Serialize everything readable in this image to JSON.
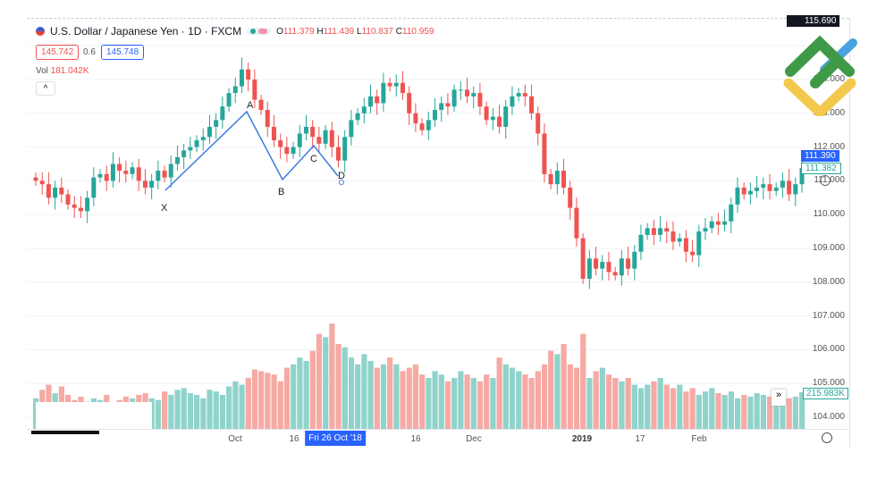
{
  "header": {
    "title": "U.S. Dollar / Japanese Yen · 1D · FXCM",
    "open": "111.379",
    "high": "111.439",
    "low": "110.837",
    "close": "110.959",
    "o": "O",
    "h": "H",
    "l": "L",
    "c": "C"
  },
  "bid": "145.742",
  "spread": "0.6",
  "ask": "145.748",
  "volume": {
    "label": "Vol",
    "value": "181.042K",
    "last": "215.983K"
  },
  "price_axis": [
    "115.690",
    "114.000",
    "113.000",
    "112.000",
    "111.000",
    "110.000",
    "109.000",
    "108.000",
    "107.000",
    "106.000",
    "105.000",
    "104.000"
  ],
  "price_badges": {
    "last": "111.390",
    "prev": "111.382"
  },
  "time_axis": [
    "Oct",
    "16",
    "Fri 26 Oct '18",
    "16",
    "Dec",
    "2019",
    "17",
    "Feb"
  ],
  "pattern_labels": [
    "X",
    "A",
    "B",
    "C",
    "D"
  ],
  "colors": {
    "up": "#26a69a",
    "down": "#ef5350",
    "vol_up": "#8fd3cb",
    "vol_down": "#f7a9a4",
    "pattern": "#3b7be0",
    "highlight": "#2962ff"
  },
  "chart_data": {
    "type": "candlestick",
    "closes": [
      111.0,
      110.9,
      110.5,
      110.8,
      110.6,
      110.3,
      110.2,
      110.1,
      110.5,
      111.1,
      111.2,
      111.0,
      111.5,
      111.3,
      111.2,
      111.4,
      111.0,
      110.8,
      111.0,
      111.3,
      111.1,
      111.5,
      111.7,
      111.9,
      112.0,
      112.2,
      112.3,
      112.6,
      112.8,
      113.2,
      113.6,
      113.8,
      114.3,
      114.0,
      113.4,
      113.1,
      112.6,
      112.2,
      112.0,
      111.8,
      112.0,
      112.4,
      112.6,
      112.3,
      112.1,
      112.5,
      112.0,
      111.6,
      112.3,
      112.8,
      113.0,
      113.2,
      113.5,
      113.3,
      113.9,
      113.8,
      113.9,
      113.6,
      113.0,
      112.7,
      112.5,
      112.8,
      113.1,
      113.3,
      113.2,
      113.7,
      113.7,
      113.5,
      113.6,
      113.2,
      112.8,
      112.9,
      112.6,
      113.2,
      113.5,
      113.6,
      113.5,
      113.0,
      112.4,
      111.2,
      110.9,
      111.3,
      110.8,
      110.2,
      109.3,
      108.1,
      108.7,
      108.4,
      108.6,
      108.3,
      108.2,
      108.7,
      108.4,
      108.9,
      109.4,
      109.6,
      109.4,
      109.6,
      109.5,
      109.2,
      109.3,
      108.9,
      108.8,
      109.5,
      109.6,
      109.8,
      109.7,
      109.8,
      110.3,
      110.8,
      110.6,
      110.7,
      110.8,
      110.9,
      110.7,
      110.8,
      111.0,
      110.6,
      110.9,
      111.38
    ],
    "volumes": [
      180,
      230,
      260,
      210,
      250,
      200,
      170,
      190,
      160,
      180,
      170,
      200,
      150,
      170,
      190,
      180,
      200,
      210,
      180,
      170,
      220,
      200,
      230,
      240,
      210,
      200,
      180,
      230,
      220,
      200,
      250,
      280,
      260,
      300,
      350,
      340,
      330,
      320,
      280,
      360,
      380,
      420,
      400,
      460,
      560,
      540,
      620,
      500,
      480,
      420,
      380,
      440,
      400,
      360,
      380,
      420,
      380,
      340,
      360,
      380,
      320,
      300,
      340,
      320,
      280,
      300,
      340,
      320,
      300,
      280,
      320,
      300,
      420,
      380,
      360,
      340,
      320,
      300,
      340,
      380,
      460,
      440,
      500,
      380,
      360,
      560,
      300,
      340,
      360,
      320,
      300,
      280,
      300,
      260,
      240,
      260,
      280,
      300,
      260,
      240,
      260,
      220,
      240,
      200,
      220,
      240,
      210,
      200,
      220,
      180,
      200,
      190,
      210,
      200,
      190,
      170,
      200,
      180,
      190,
      216
    ],
    "ylim": [
      103.7,
      115.9
    ]
  }
}
